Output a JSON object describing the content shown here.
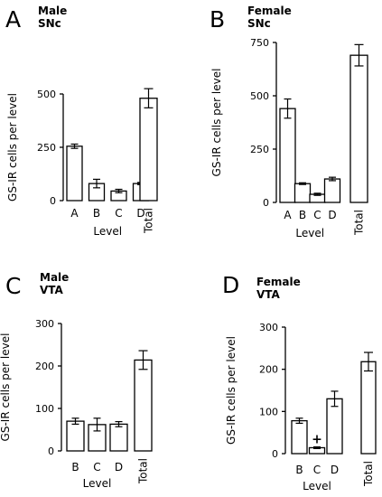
{
  "chart_data": [
    {
      "type": "bar",
      "panel": "A",
      "title_lines": [
        "Male",
        "SNc"
      ],
      "ylabel": "GS-IR cells per level",
      "xlabel": "Level",
      "ylim": [
        0,
        500
      ],
      "yticks": [
        0,
        250,
        500
      ],
      "categories": [
        "A",
        "B",
        "C",
        "D"
      ],
      "values": [
        255,
        80,
        45,
        80
      ],
      "errors": [
        10,
        20,
        8,
        5
      ],
      "total_label": "Total",
      "total_value": 480,
      "total_error": 45,
      "annotations": []
    },
    {
      "type": "bar",
      "panel": "B",
      "title_lines": [
        "Female",
        "SNc"
      ],
      "ylabel": "GS-IR cells per level",
      "xlabel": "Level",
      "ylim": [
        0,
        750
      ],
      "yticks": [
        0,
        250,
        500,
        750
      ],
      "categories": [
        "A",
        "B",
        "C",
        "D"
      ],
      "values": [
        440,
        88,
        38,
        110
      ],
      "errors": [
        45,
        4,
        5,
        8
      ],
      "total_label": "Total",
      "total_value": 690,
      "total_error": 50,
      "annotations": []
    },
    {
      "type": "bar",
      "panel": "C",
      "title_lines": [
        "Male",
        "VTA"
      ],
      "ylabel": "GS-IR cells per level",
      "xlabel": "Level",
      "ylim": [
        0,
        300
      ],
      "yticks": [
        0,
        100,
        200,
        300
      ],
      "categories": [
        "B",
        "C",
        "D"
      ],
      "values": [
        70,
        62,
        63
      ],
      "errors": [
        7,
        15,
        6
      ],
      "total_label": "Total",
      "total_value": 214,
      "total_error": 22,
      "annotations": []
    },
    {
      "type": "bar",
      "panel": "D",
      "title_lines": [
        "Female",
        "VTA"
      ],
      "ylabel": "GS-IR cells per level",
      "xlabel": "Level",
      "ylim": [
        0,
        300
      ],
      "yticks": [
        0,
        100,
        200,
        300
      ],
      "categories": [
        "B",
        "C",
        "D"
      ],
      "values": [
        78,
        14,
        130
      ],
      "errors": [
        6,
        2,
        18
      ],
      "total_label": "Total",
      "total_value": 218,
      "total_error": 22,
      "annotations": [
        {
          "category": "C",
          "text": "+"
        }
      ]
    }
  ]
}
